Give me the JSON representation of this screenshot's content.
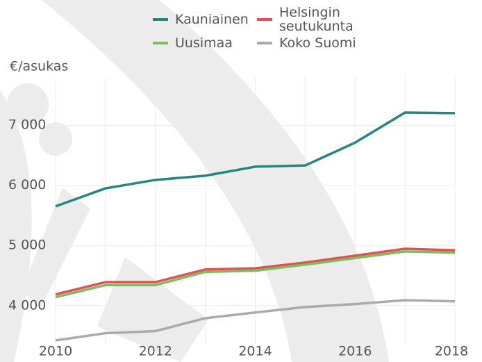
{
  "chart_data": {
    "type": "line",
    "y_label": "€/asukas",
    "x": [
      2010,
      2011,
      2012,
      2013,
      2014,
      2015,
      2016,
      2017,
      2018
    ],
    "series": [
      {
        "name": "Kauniainen",
        "color": "#23877f",
        "values": [
          5650,
          5950,
          6090,
          6160,
          6310,
          6330,
          6710,
          7210,
          7200
        ]
      },
      {
        "name": "Helsingin seutukunta",
        "color": "#e05252",
        "values": [
          4185,
          4390,
          4390,
          4600,
          4620,
          4715,
          4830,
          4945,
          4920
        ]
      },
      {
        "name": "Uusimaa",
        "color": "#7cbd5e",
        "values": [
          4140,
          4340,
          4340,
          4560,
          4580,
          4680,
          4790,
          4900,
          4880
        ]
      },
      {
        "name": "Koko Suomi",
        "color": "#aaaaaa",
        "values": [
          3420,
          3540,
          3575,
          3790,
          3885,
          3975,
          4025,
          4090,
          4070
        ]
      }
    ],
    "xlim": [
      2010,
      2018
    ],
    "xticks": [
      2010,
      2012,
      2014,
      2016,
      2018
    ],
    "ylim": [
      3350,
      7800
    ],
    "yticks": [
      {
        "value": 4000,
        "label": "4 000"
      },
      {
        "value": 5000,
        "label": "5 000"
      },
      {
        "value": 6000,
        "label": "6 000"
      },
      {
        "value": 7000,
        "label": "7 000"
      }
    ],
    "grid": true,
    "legend": "top"
  }
}
